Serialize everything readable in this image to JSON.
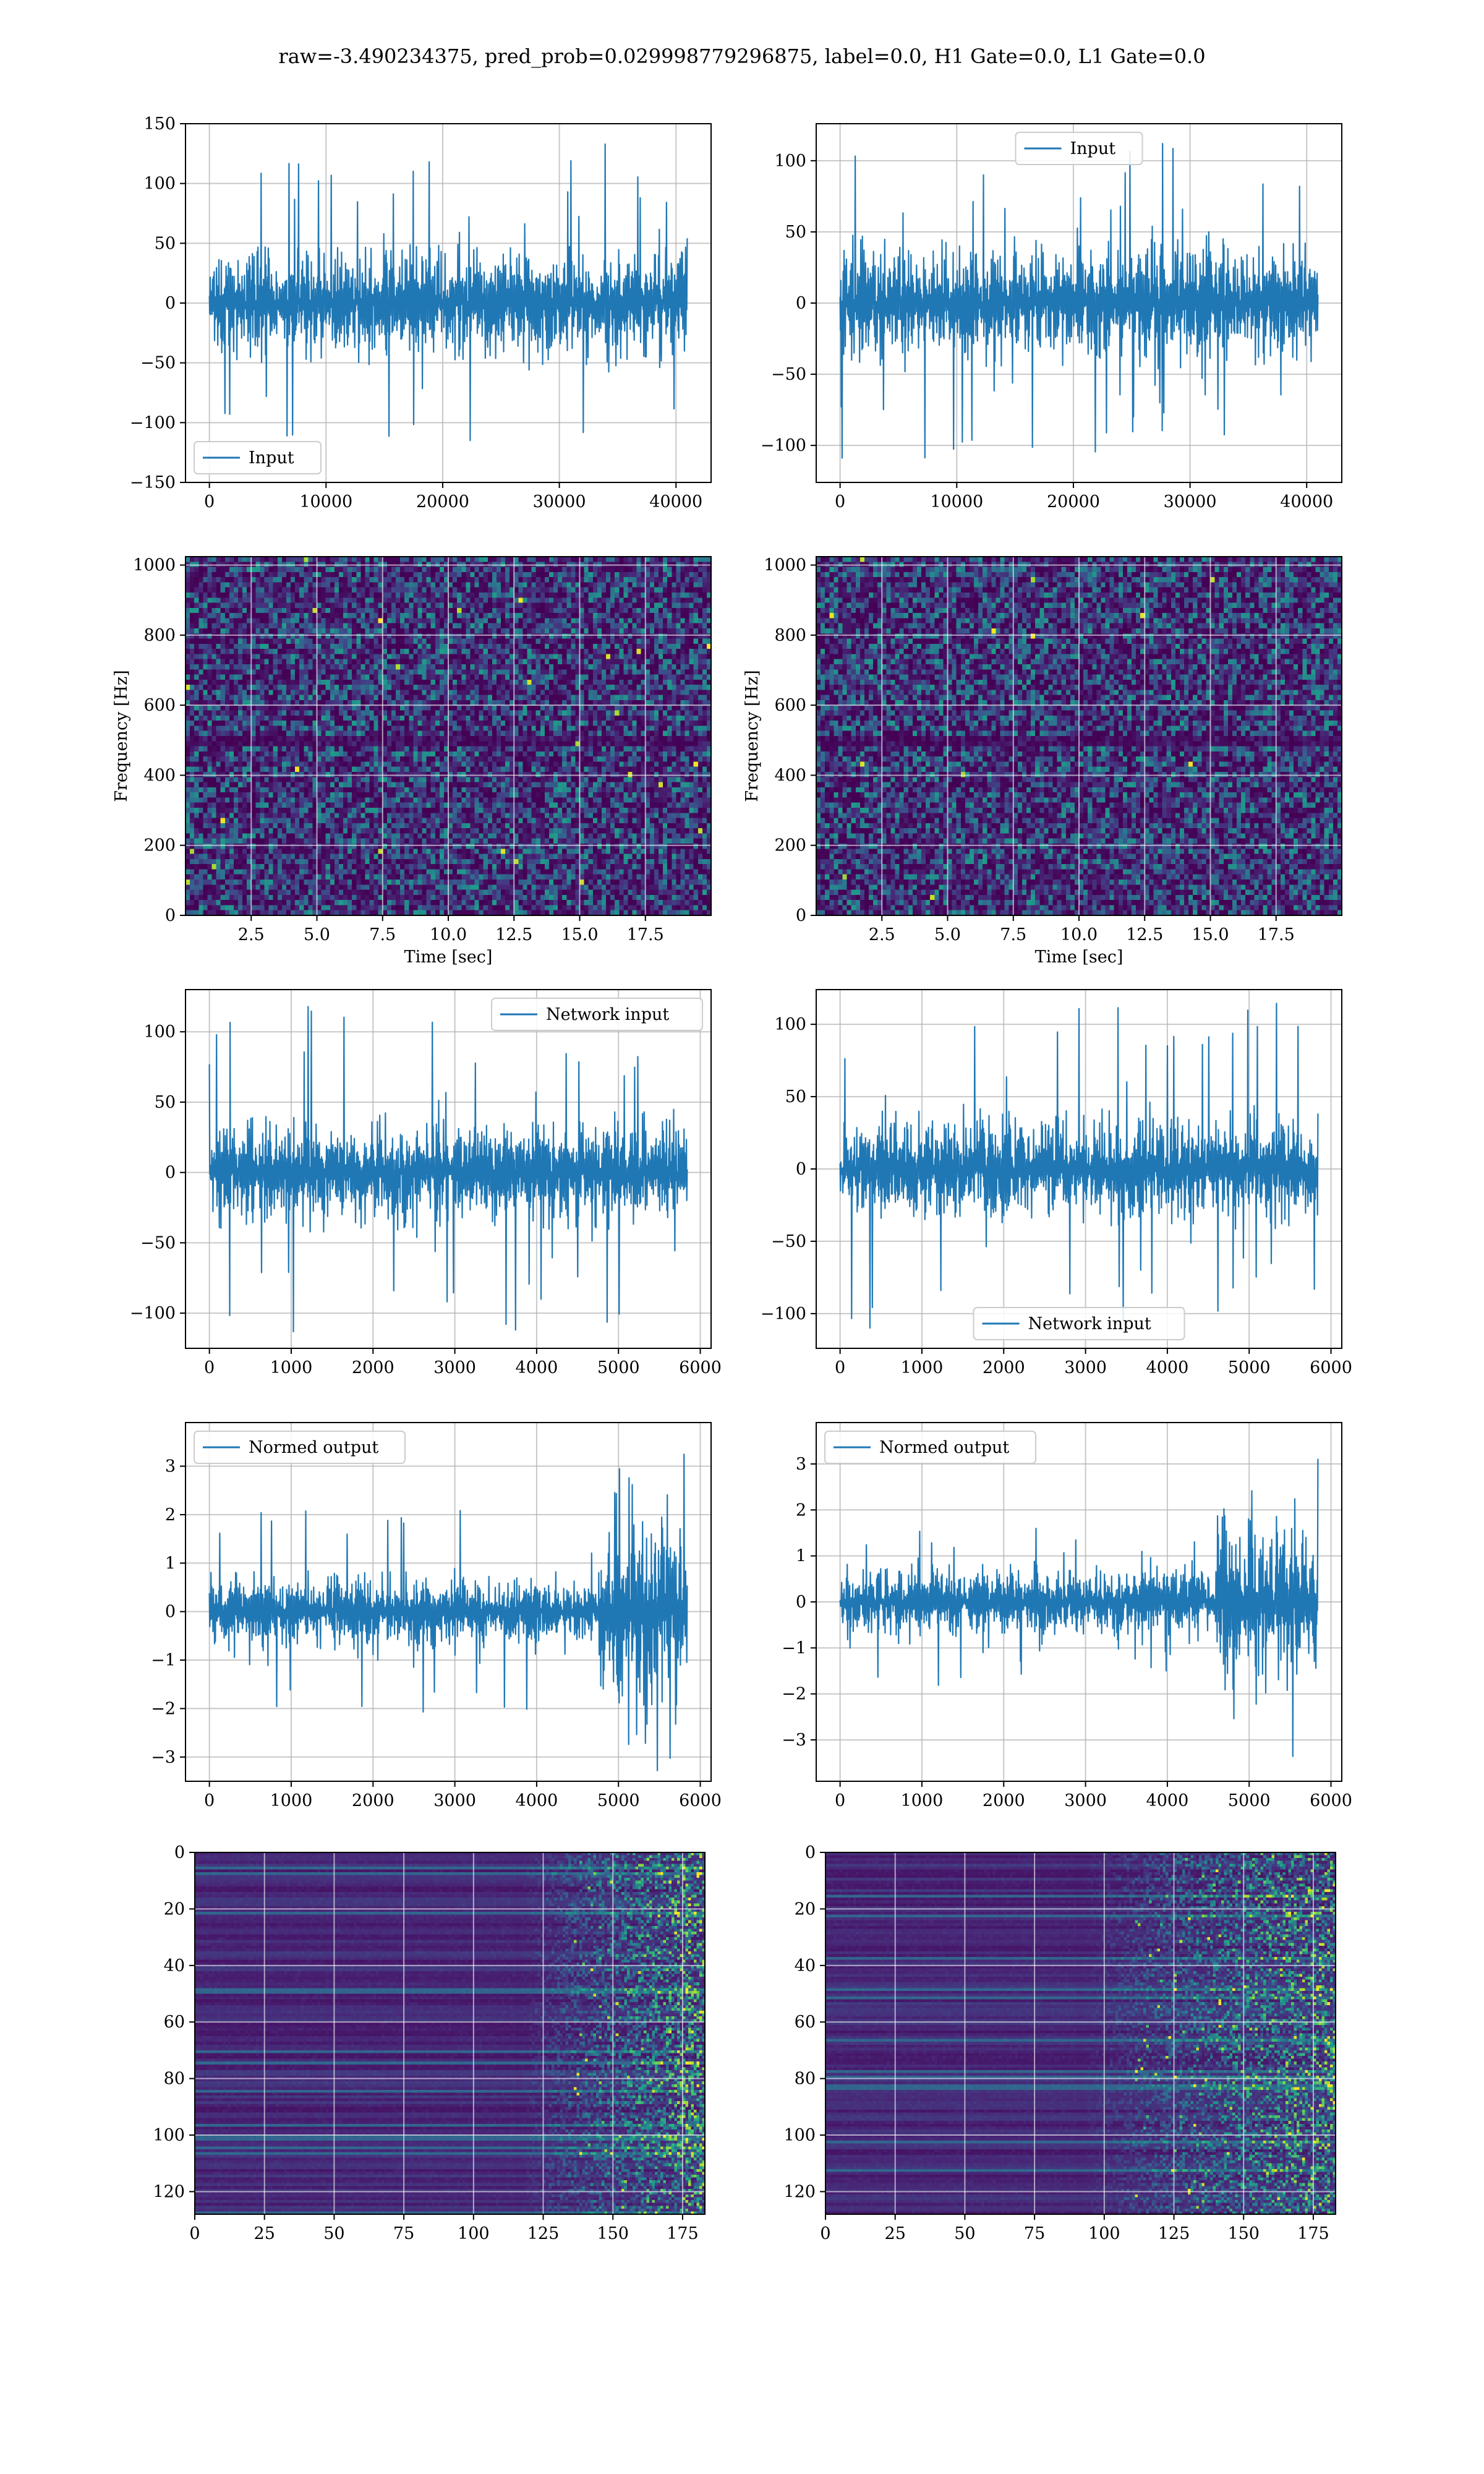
{
  "figure": {
    "suptitle": "raw=-3.490234375, pred_prob=0.029998779296875, label=0.0, H1 Gate=0.0, L1 Gate=0.0",
    "line_color": "#1f77b4"
  },
  "chart_data": [
    {
      "id": "h1-input",
      "type": "line",
      "style": "noise",
      "x_range": [
        0,
        40960
      ],
      "xlim": [
        -2048,
        43008
      ],
      "ylim": [
        -150,
        150
      ],
      "xticks": [
        0,
        10000,
        20000,
        30000,
        40000
      ],
      "xtick_labels": [
        "0",
        "10000",
        "20000",
        "30000",
        "40000"
      ],
      "yticks": [
        -150,
        -100,
        -50,
        0,
        50,
        100,
        150
      ],
      "ytick_labels": [
        "−150",
        "−100",
        "−50",
        "0",
        "50",
        "100",
        "150"
      ],
      "series": [
        {
          "name": "Input",
          "amplitude": {
            "base": 33,
            "peak": 135
          }
        }
      ],
      "legend": "lower-left",
      "xlabel": "",
      "ylabel": "",
      "grid": true
    },
    {
      "id": "l1-input",
      "type": "line",
      "style": "noise",
      "x_range": [
        0,
        40960
      ],
      "xlim": [
        -2048,
        43008
      ],
      "ylim": [
        -126,
        126
      ],
      "xticks": [
        0,
        10000,
        20000,
        30000,
        40000
      ],
      "xtick_labels": [
        "0",
        "10000",
        "20000",
        "30000",
        "40000"
      ],
      "yticks": [
        -100,
        -50,
        0,
        50,
        100
      ],
      "ytick_labels": [
        "−100",
        "−50",
        "0",
        "50",
        "100"
      ],
      "series": [
        {
          "name": "Input",
          "amplitude": {
            "base": 30,
            "peak": 115
          }
        }
      ],
      "legend": "upper-center",
      "xlabel": "",
      "ylabel": "",
      "grid": true
    },
    {
      "id": "h1-spectrogram",
      "type": "heatmap",
      "style": "spectrogram",
      "xlim": [
        0,
        20
      ],
      "ylim": [
        0,
        1024
      ],
      "xticks": [
        2.5,
        5.0,
        7.5,
        10.0,
        12.5,
        15.0,
        17.5
      ],
      "xtick_labels": [
        "2.5",
        "5.0",
        "7.5",
        "10.0",
        "12.5",
        "15.0",
        "17.5"
      ],
      "yticks": [
        0,
        200,
        400,
        600,
        800,
        1000
      ],
      "ytick_labels": [
        "0",
        "200",
        "400",
        "600",
        "800",
        "1000"
      ],
      "xlabel": "Time [sec]",
      "ylabel": "Frequency [Hz]",
      "grid": true,
      "colormap": "viridis"
    },
    {
      "id": "l1-spectrogram",
      "type": "heatmap",
      "style": "spectrogram",
      "xlim": [
        0,
        20
      ],
      "ylim": [
        0,
        1024
      ],
      "xticks": [
        2.5,
        5.0,
        7.5,
        10.0,
        12.5,
        15.0,
        17.5
      ],
      "xtick_labels": [
        "2.5",
        "5.0",
        "7.5",
        "10.0",
        "12.5",
        "15.0",
        "17.5"
      ],
      "yticks": [
        0,
        200,
        400,
        600,
        800,
        1000
      ],
      "ytick_labels": [
        "0",
        "200",
        "400",
        "600",
        "800",
        "1000"
      ],
      "xlabel": "Time [sec]",
      "ylabel": "Frequency [Hz]",
      "grid": true,
      "colormap": "viridis"
    },
    {
      "id": "h1-network-input",
      "type": "line",
      "style": "noise",
      "x_range": [
        0,
        5840
      ],
      "xlim": [
        -292,
        6132
      ],
      "ylim": [
        -125,
        130
      ],
      "xticks": [
        0,
        1000,
        2000,
        3000,
        4000,
        5000,
        6000
      ],
      "xtick_labels": [
        "0",
        "1000",
        "2000",
        "3000",
        "4000",
        "5000",
        "6000"
      ],
      "yticks": [
        -100,
        -50,
        0,
        50,
        100
      ],
      "ytick_labels": [
        "−100",
        "−50",
        "0",
        "50",
        "100"
      ],
      "series": [
        {
          "name": "Network input",
          "amplitude": {
            "base": 27,
            "peak": 118
          }
        }
      ],
      "legend": "upper-right",
      "xlabel": "",
      "ylabel": "",
      "grid": true
    },
    {
      "id": "l1-network-input",
      "type": "line",
      "style": "noise",
      "x_range": [
        0,
        5840
      ],
      "xlim": [
        -292,
        6132
      ],
      "ylim": [
        -124,
        124
      ],
      "xticks": [
        0,
        1000,
        2000,
        3000,
        4000,
        5000,
        6000
      ],
      "xtick_labels": [
        "0",
        "1000",
        "2000",
        "3000",
        "4000",
        "5000",
        "6000"
      ],
      "yticks": [
        -100,
        -50,
        0,
        50,
        100
      ],
      "ytick_labels": [
        "−100",
        "−50",
        "0",
        "50",
        "100"
      ],
      "series": [
        {
          "name": "Network input",
          "amplitude": {
            "base": 27,
            "peak": 118
          }
        }
      ],
      "legend": "lower-center",
      "xlabel": "",
      "ylabel": "",
      "grid": true
    },
    {
      "id": "h1-normed-output",
      "type": "line",
      "style": "noise",
      "x_range": [
        0,
        5840
      ],
      "xlim": [
        -292,
        6132
      ],
      "ylim": [
        -3.5,
        3.9
      ],
      "xticks": [
        0,
        1000,
        2000,
        3000,
        4000,
        5000,
        6000
      ],
      "xtick_labels": [
        "0",
        "1000",
        "2000",
        "3000",
        "4000",
        "5000",
        "6000"
      ],
      "yticks": [
        -3,
        -2,
        -1,
        0,
        1,
        2,
        3
      ],
      "ytick_labels": [
        "−3",
        "−2",
        "−1",
        "0",
        "1",
        "2",
        "3"
      ],
      "series": [
        {
          "name": "Normed output",
          "amplitude": {
            "base": 0.55,
            "peak": 2.1,
            "burst_start": 4750,
            "burst_base": 1.3,
            "burst_peak": 3.5
          }
        }
      ],
      "legend": "upper-left",
      "xlabel": "",
      "ylabel": "",
      "grid": true
    },
    {
      "id": "l1-normed-output",
      "type": "line",
      "style": "noise",
      "x_range": [
        0,
        5840
      ],
      "xlim": [
        -292,
        6132
      ],
      "ylim": [
        -3.9,
        3.9
      ],
      "xticks": [
        0,
        1000,
        2000,
        3000,
        4000,
        5000,
        6000
      ],
      "xtick_labels": [
        "0",
        "1000",
        "2000",
        "3000",
        "4000",
        "5000",
        "6000"
      ],
      "yticks": [
        -3,
        -2,
        -1,
        0,
        1,
        2,
        3
      ],
      "ytick_labels": [
        "−3",
        "−2",
        "−1",
        "0",
        "1",
        "2",
        "3"
      ],
      "series": [
        {
          "name": "Normed output",
          "amplitude": {
            "base": 0.55,
            "peak": 1.9,
            "burst_start": 4600,
            "burst_base": 1.3,
            "burst_peak": 3.5
          }
        }
      ],
      "legend": "upper-left",
      "xlabel": "",
      "ylabel": "",
      "grid": true
    },
    {
      "id": "h1-feature-map",
      "type": "heatmap",
      "style": "featuremap",
      "xlim": [
        0,
        183
      ],
      "ylim": [
        128,
        0
      ],
      "onset": 115,
      "xticks": [
        0,
        25,
        50,
        75,
        100,
        125,
        150,
        175
      ],
      "xtick_labels": [
        "0",
        "25",
        "50",
        "75",
        "100",
        "125",
        "150",
        "175"
      ],
      "yticks": [
        0,
        20,
        40,
        60,
        80,
        100,
        120
      ],
      "ytick_labels": [
        "0",
        "20",
        "40",
        "60",
        "80",
        "100",
        "120"
      ],
      "xlabel": "",
      "ylabel": "",
      "grid": true,
      "colormap": "viridis"
    },
    {
      "id": "l1-feature-map",
      "type": "heatmap",
      "style": "featuremap",
      "xlim": [
        0,
        183
      ],
      "ylim": [
        128,
        0
      ],
      "onset": 90,
      "xticks": [
        0,
        25,
        50,
        75,
        100,
        125,
        150,
        175
      ],
      "xtick_labels": [
        "0",
        "25",
        "50",
        "75",
        "100",
        "125",
        "150",
        "175"
      ],
      "yticks": [
        0,
        20,
        40,
        60,
        80,
        100,
        120
      ],
      "ytick_labels": [
        "0",
        "20",
        "40",
        "60",
        "80",
        "100",
        "120"
      ],
      "xlabel": "",
      "ylabel": "",
      "grid": true,
      "colormap": "viridis"
    }
  ]
}
